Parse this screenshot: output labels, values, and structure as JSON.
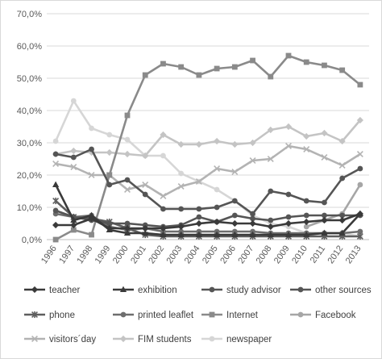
{
  "chart_data": {
    "type": "line",
    "title": "",
    "xlabel": "",
    "ylabel": "",
    "x": [
      "1996",
      "1997",
      "1998",
      "1999",
      "2000",
      "2001",
      "2002",
      "2003",
      "2004",
      "2005",
      "2006",
      "2007",
      "2008",
      "2009",
      "2010",
      "2011",
      "2012",
      "2013"
    ],
    "ylim": [
      0,
      70
    ],
    "yticks": [
      "0,0%",
      "10,0%",
      "20,0%",
      "30,0%",
      "40,0%",
      "50,0%",
      "60,0%",
      "70,0%"
    ],
    "grid": true,
    "legend_position": "bottom",
    "series": [
      {
        "name": "teacher",
        "color": "#3a3a3a",
        "marker": "diamond",
        "values": [
          4.5,
          4.5,
          6.5,
          3.5,
          3.5,
          3.5,
          3.5,
          4,
          5,
          5.5,
          5,
          5,
          4,
          5,
          5.5,
          6,
          6,
          8
        ]
      },
      {
        "name": "exhibition",
        "color": "#3a3a3a",
        "marker": "triangle",
        "values": [
          17,
          6,
          7.5,
          3,
          2,
          2,
          1.5,
          1.5,
          1.5,
          1.5,
          1.5,
          1.5,
          1.5,
          1.5,
          1.5,
          2,
          2,
          8
        ]
      },
      {
        "name": "study advisor",
        "color": "#555555",
        "marker": "circle",
        "values": [
          26.5,
          25.5,
          28,
          17,
          18.5,
          14,
          9.5,
          9.5,
          9.5,
          10,
          12,
          8,
          15,
          14,
          12,
          11.5,
          19,
          22
        ]
      },
      {
        "name": "other sources",
        "color": "#555555",
        "marker": "circle",
        "values": [
          9,
          7,
          6,
          5,
          5,
          4.5,
          4,
          4.5,
          7,
          5.5,
          7.5,
          6.5,
          6,
          7,
          7.5,
          7.5,
          7.5,
          7.5
        ]
      },
      {
        "name": "phone",
        "color": "#5e5e5e",
        "marker": "star",
        "values": [
          12,
          7,
          6.5,
          5.5,
          3.5,
          1.5,
          1,
          1,
          1,
          1,
          1,
          1,
          1,
          1,
          1,
          1,
          1,
          1
        ]
      },
      {
        "name": "printed leaflet",
        "color": "#6e6e6e",
        "marker": "circle",
        "values": [
          8,
          7,
          7.5,
          4,
          3,
          3.5,
          2.5,
          2.5,
          2.5,
          2.5,
          2.5,
          2.5,
          2,
          2,
          2,
          2,
          2,
          2.5
        ]
      },
      {
        "name": "Internet",
        "color": "#8a8a8a",
        "marker": "square",
        "values": [
          0,
          3,
          1.5,
          20,
          38.5,
          51,
          54.5,
          53.5,
          51,
          53,
          53.5,
          55.5,
          50.5,
          57,
          55,
          54,
          52.5,
          48
        ]
      },
      {
        "name": "Facebook",
        "color": "#a6a6a6",
        "marker": "circle",
        "values": [
          null,
          null,
          null,
          null,
          null,
          null,
          null,
          null,
          null,
          null,
          null,
          null,
          null,
          null,
          4,
          6,
          8,
          17
        ]
      },
      {
        "name": "visitors´day",
        "color": "#b3b3b3",
        "marker": "x",
        "values": [
          23.5,
          22.5,
          20,
          20,
          15.5,
          17,
          13.5,
          16.5,
          18,
          22,
          21,
          24.5,
          25,
          29,
          28,
          25.5,
          23,
          26.5
        ]
      },
      {
        "name": "FIM students",
        "color": "#c4c4c4",
        "marker": "diamond",
        "values": [
          26.5,
          27.5,
          27,
          27,
          26.5,
          26,
          32.5,
          29.5,
          29.5,
          30.5,
          29.5,
          30,
          34,
          35,
          32,
          33,
          30.5,
          37
        ]
      },
      {
        "name": "newspaper",
        "color": "#d6d6d6",
        "marker": "circle",
        "values": [
          30.5,
          43,
          34.5,
          32.5,
          31,
          26,
          26,
          20.5,
          18,
          15.5,
          12,
          7.5,
          5,
          4,
          2,
          2,
          2,
          1
        ]
      }
    ]
  }
}
